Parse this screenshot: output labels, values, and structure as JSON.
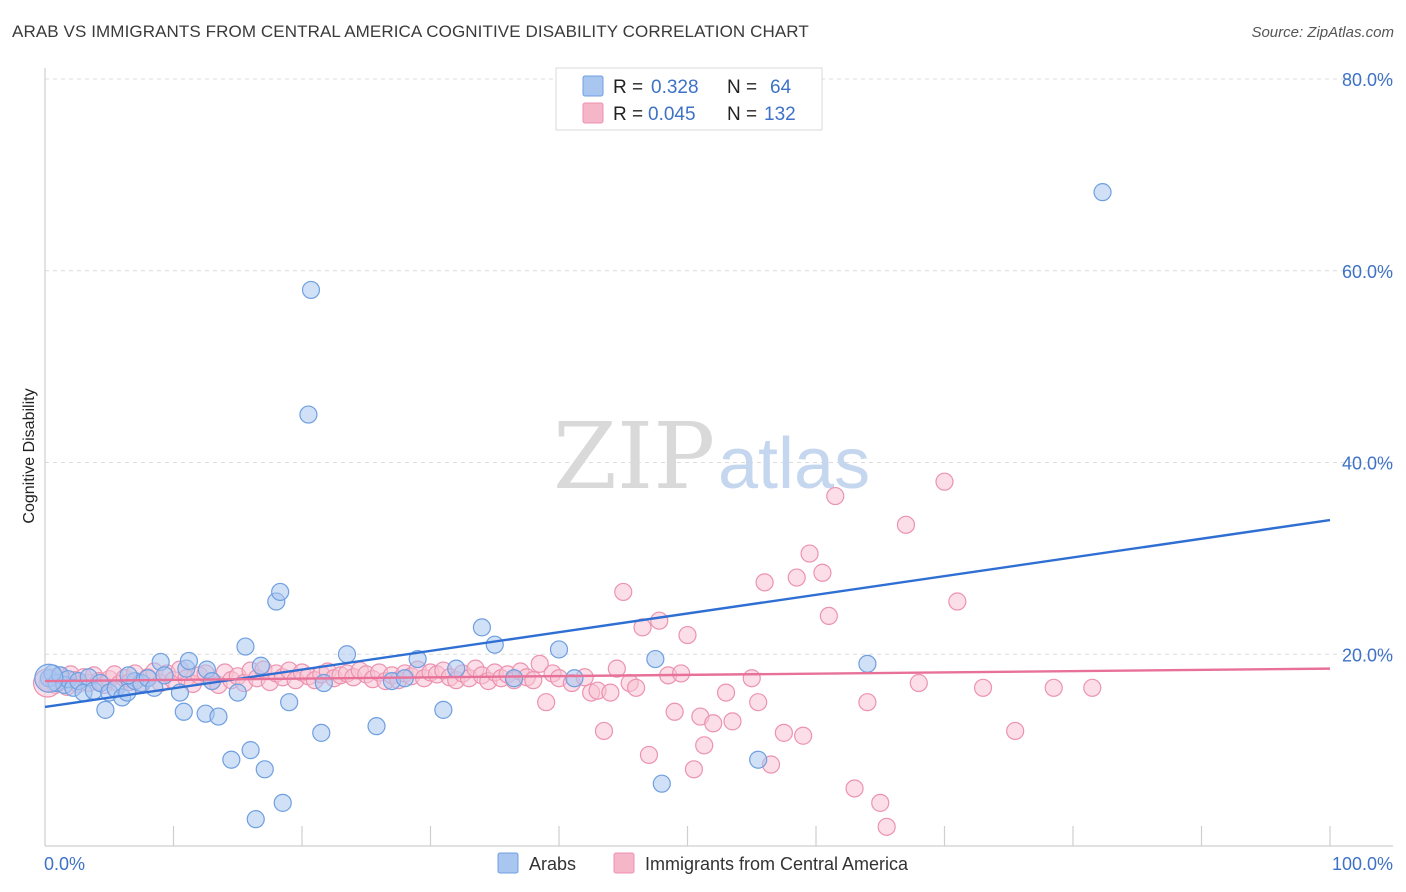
{
  "header": {
    "title": "ARAB VS IMMIGRANTS FROM CENTRAL AMERICA COGNITIVE DISABILITY CORRELATION CHART",
    "source": "Source: ZipAtlas.com"
  },
  "watermark": {
    "zip": "ZIP",
    "atlas": "atlas"
  },
  "legend_top": {
    "rows": [
      {
        "r_label": "R =",
        "r_value": "0.328",
        "n_label": "N =",
        "n_value": "64",
        "color": "#a9c6f0"
      },
      {
        "r_label": "R =",
        "r_value": "0.045",
        "n_label": "N =",
        "n_value": "132",
        "color": "#f5b6c9"
      }
    ]
  },
  "legend_bottom": [
    {
      "label": "Arabs",
      "color": "#a9c6f0"
    },
    {
      "label": "Immigrants from Central America",
      "color": "#f5b6c9"
    }
  ],
  "colors": {
    "arab_fill": "#a9c6f0",
    "arab_stroke": "#6f9fe0",
    "arab_line": "#2f6fd3",
    "imm_fill": "#f7c3d3",
    "imm_stroke": "#ec93b0",
    "imm_line": "#e8719a",
    "grid": "#dcdcdc",
    "tick_label": "#3d72c7"
  },
  "chart_data": {
    "type": "scatter",
    "title": "ARAB VS IMMIGRANTS FROM CENTRAL AMERICA COGNITIVE DISABILITY CORRELATION CHART",
    "xlabel": "",
    "ylabel": "Cognitive Disability",
    "xlim": [
      0,
      100
    ],
    "ylim": [
      0,
      80
    ],
    "x_tick_labels": [
      "0.0%",
      "100.0%"
    ],
    "y_ticks": [
      20,
      40,
      60,
      80
    ],
    "y_tick_labels": [
      "20.0%",
      "40.0%",
      "60.0%",
      "80.0%"
    ],
    "grid": true,
    "legend_placement": "top-center",
    "series": [
      {
        "name": "Arabs",
        "R": 0.328,
        "N": 64,
        "trend": {
          "x": [
            0,
            100
          ],
          "y": [
            14.5,
            34.0
          ]
        },
        "points": [
          [
            0.3,
            17.5
          ],
          [
            0.6,
            18.0
          ],
          [
            0.9,
            17.0
          ],
          [
            1.2,
            17.8
          ],
          [
            1.5,
            16.8
          ],
          [
            1.8,
            17.4
          ],
          [
            2.2,
            16.5
          ],
          [
            2.6,
            17.2
          ],
          [
            3.0,
            16.0
          ],
          [
            3.4,
            17.6
          ],
          [
            3.8,
            16.2
          ],
          [
            4.3,
            17.0
          ],
          [
            4.7,
            14.2
          ],
          [
            5.0,
            16.0
          ],
          [
            5.5,
            16.4
          ],
          [
            6.0,
            15.5
          ],
          [
            6.4,
            16.0
          ],
          [
            7.0,
            17.2
          ],
          [
            7.5,
            17.0
          ],
          [
            8.0,
            17.5
          ],
          [
            8.5,
            16.5
          ],
          [
            9.0,
            19.2
          ],
          [
            9.3,
            17.8
          ],
          [
            10.5,
            16.0
          ],
          [
            10.8,
            14.0
          ],
          [
            11.0,
            18.5
          ],
          [
            11.2,
            19.3
          ],
          [
            12.5,
            13.8
          ],
          [
            12.6,
            18.4
          ],
          [
            13.0,
            17.2
          ],
          [
            13.5,
            13.5
          ],
          [
            14.5,
            9.0
          ],
          [
            15.0,
            16.0
          ],
          [
            15.6,
            20.8
          ],
          [
            16.0,
            10.0
          ],
          [
            16.4,
            2.8
          ],
          [
            16.8,
            18.8
          ],
          [
            17.1,
            8.0
          ],
          [
            18.0,
            25.5
          ],
          [
            18.3,
            26.5
          ],
          [
            18.5,
            4.5
          ],
          [
            19.0,
            15.0
          ],
          [
            20.5,
            45.0
          ],
          [
            20.7,
            58.0
          ],
          [
            21.5,
            11.8
          ],
          [
            21.7,
            17.0
          ],
          [
            23.5,
            20.0
          ],
          [
            25.8,
            12.5
          ],
          [
            27.0,
            17.2
          ],
          [
            28.0,
            17.5
          ],
          [
            29.0,
            19.5
          ],
          [
            31.0,
            14.2
          ],
          [
            32.0,
            18.5
          ],
          [
            34.0,
            22.8
          ],
          [
            35.0,
            21.0
          ],
          [
            36.5,
            17.5
          ],
          [
            40.0,
            20.5
          ],
          [
            41.2,
            17.5
          ],
          [
            47.5,
            19.5
          ],
          [
            48.0,
            6.5
          ],
          [
            55.5,
            9.0
          ],
          [
            64.0,
            19.0
          ],
          [
            82.3,
            68.2
          ],
          [
            6.5,
            17.8
          ]
        ]
      },
      {
        "name": "Immigrants from Central America",
        "R": 0.045,
        "N": 132,
        "trend": {
          "x": [
            0,
            100
          ],
          "y": [
            17.2,
            18.5
          ]
        },
        "points": [
          [
            0.2,
            17.0
          ],
          [
            0.5,
            17.5
          ],
          [
            0.8,
            16.8
          ],
          [
            1.1,
            17.8
          ],
          [
            1.4,
            17.2
          ],
          [
            1.7,
            16.6
          ],
          [
            2.0,
            17.9
          ],
          [
            2.3,
            17.3
          ],
          [
            2.6,
            16.9
          ],
          [
            3.0,
            17.6
          ],
          [
            3.4,
            17.0
          ],
          [
            3.8,
            17.8
          ],
          [
            4.2,
            17.2
          ],
          [
            4.6,
            16.8
          ],
          [
            5.0,
            17.4
          ],
          [
            5.4,
            17.9
          ],
          [
            5.8,
            16.9
          ],
          [
            6.2,
            17.5
          ],
          [
            6.6,
            17.1
          ],
          [
            7.0,
            18.0
          ],
          [
            7.5,
            16.8
          ],
          [
            8.0,
            17.6
          ],
          [
            8.5,
            18.2
          ],
          [
            9.0,
            17.0
          ],
          [
            9.5,
            18.0
          ],
          [
            10.0,
            17.3
          ],
          [
            10.5,
            18.4
          ],
          [
            11.0,
            17.5
          ],
          [
            11.5,
            16.9
          ],
          [
            12.0,
            17.8
          ],
          [
            12.5,
            18.0
          ],
          [
            13.0,
            17.2
          ],
          [
            13.5,
            16.8
          ],
          [
            14.0,
            18.1
          ],
          [
            14.5,
            17.3
          ],
          [
            15.0,
            17.7
          ],
          [
            15.5,
            17.0
          ],
          [
            16.0,
            18.3
          ],
          [
            16.5,
            17.5
          ],
          [
            17.0,
            18.4
          ],
          [
            17.5,
            17.1
          ],
          [
            18.0,
            18.0
          ],
          [
            18.5,
            17.6
          ],
          [
            19.0,
            18.3
          ],
          [
            19.5,
            17.3
          ],
          [
            20.0,
            18.1
          ],
          [
            20.5,
            17.7
          ],
          [
            21.0,
            17.3
          ],
          [
            21.5,
            17.9
          ],
          [
            22.0,
            18.2
          ],
          [
            22.5,
            17.5
          ],
          [
            23.0,
            17.8
          ],
          [
            23.5,
            18.0
          ],
          [
            24.0,
            17.6
          ],
          [
            24.5,
            18.3
          ],
          [
            25.0,
            17.9
          ],
          [
            25.5,
            17.4
          ],
          [
            26.0,
            18.1
          ],
          [
            26.5,
            17.2
          ],
          [
            27.0,
            17.8
          ],
          [
            27.5,
            17.3
          ],
          [
            28.0,
            18.0
          ],
          [
            28.5,
            17.7
          ],
          [
            29.0,
            18.4
          ],
          [
            29.5,
            17.5
          ],
          [
            30.0,
            18.1
          ],
          [
            30.5,
            17.9
          ],
          [
            31.0,
            18.3
          ],
          [
            31.5,
            17.6
          ],
          [
            32.0,
            17.3
          ],
          [
            32.5,
            18.0
          ],
          [
            33.0,
            17.5
          ],
          [
            33.5,
            18.5
          ],
          [
            34.0,
            17.8
          ],
          [
            34.5,
            17.2
          ],
          [
            35.0,
            18.1
          ],
          [
            35.5,
            17.5
          ],
          [
            36.0,
            17.9
          ],
          [
            36.5,
            17.3
          ],
          [
            37.0,
            18.2
          ],
          [
            37.5,
            17.6
          ],
          [
            38.0,
            17.3
          ],
          [
            38.5,
            19.0
          ],
          [
            39.0,
            15.0
          ],
          [
            39.5,
            18.0
          ],
          [
            40.0,
            17.5
          ],
          [
            41.0,
            17.0
          ],
          [
            42.0,
            17.6
          ],
          [
            42.5,
            16.0
          ],
          [
            43.0,
            16.2
          ],
          [
            43.5,
            12.0
          ],
          [
            44.0,
            16.0
          ],
          [
            44.5,
            18.5
          ],
          [
            45.0,
            26.5
          ],
          [
            45.5,
            17.0
          ],
          [
            46.0,
            16.5
          ],
          [
            46.5,
            22.8
          ],
          [
            47.0,
            9.5
          ],
          [
            47.8,
            23.5
          ],
          [
            48.5,
            17.8
          ],
          [
            49.0,
            14.0
          ],
          [
            49.5,
            18.0
          ],
          [
            50.0,
            22.0
          ],
          [
            50.5,
            8.0
          ],
          [
            51.0,
            13.5
          ],
          [
            51.3,
            10.5
          ],
          [
            52.0,
            12.8
          ],
          [
            53.0,
            16.0
          ],
          [
            53.5,
            13.0
          ],
          [
            55.0,
            17.5
          ],
          [
            55.5,
            15.0
          ],
          [
            56.0,
            27.5
          ],
          [
            56.5,
            8.5
          ],
          [
            57.5,
            11.8
          ],
          [
            58.5,
            28.0
          ],
          [
            59.0,
            11.5
          ],
          [
            59.5,
            30.5
          ],
          [
            60.5,
            28.5
          ],
          [
            61.0,
            24.0
          ],
          [
            61.5,
            36.5
          ],
          [
            63.0,
            6.0
          ],
          [
            64.0,
            15.0
          ],
          [
            65.0,
            4.5
          ],
          [
            65.5,
            2.0
          ],
          [
            67.0,
            33.5
          ],
          [
            68.0,
            17.0
          ],
          [
            70.0,
            38.0
          ],
          [
            71.0,
            25.5
          ],
          [
            73.0,
            16.5
          ],
          [
            75.5,
            12.0
          ],
          [
            78.5,
            16.5
          ],
          [
            81.5,
            16.5
          ]
        ]
      }
    ]
  }
}
